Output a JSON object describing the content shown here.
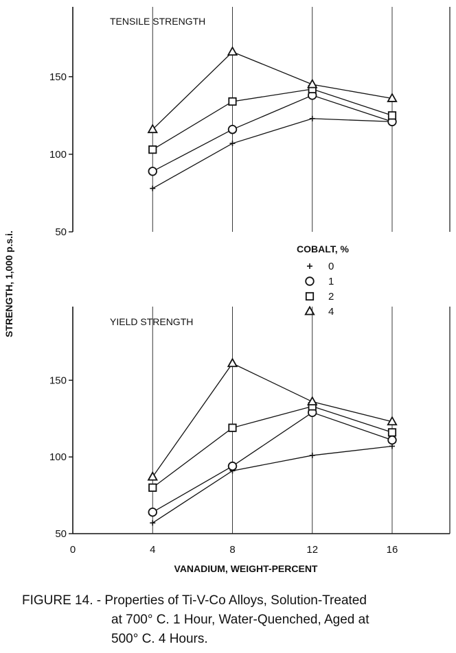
{
  "chart_data": {
    "type": "line",
    "ylabel": "STRENGTH, 1,000 p.s.i.",
    "xlabel": "VANADIUM, WEIGHT-PERCENT",
    "x": [
      4,
      8,
      12,
      16
    ],
    "xticks": [
      0,
      4,
      8,
      12,
      16
    ],
    "xtick_labels": [
      "0",
      "4",
      "8",
      "12",
      "16"
    ],
    "legend": {
      "title": "COBALT, %",
      "entries": [
        {
          "marker": "+",
          "label": "0"
        },
        {
          "marker": "○",
          "label": "1"
        },
        {
          "marker": "□",
          "label": "2"
        },
        {
          "marker": "△",
          "label": "4"
        }
      ]
    },
    "panels": [
      {
        "title": "TENSILE STRENGTH",
        "ylim": [
          50,
          195
        ],
        "yticks": [
          50,
          100,
          150
        ],
        "ytick_labels": [
          "50",
          "100",
          "150"
        ],
        "series": [
          {
            "name": "0",
            "marker": "plus",
            "values": [
              78,
              107,
              123,
              121
            ]
          },
          {
            "name": "1",
            "marker": "circle",
            "values": [
              89,
              116,
              138,
              121
            ]
          },
          {
            "name": "2",
            "marker": "square",
            "values": [
              103,
              134,
              142,
              125
            ]
          },
          {
            "name": "4",
            "marker": "triangle",
            "values": [
              116,
              166,
              145,
              136
            ]
          }
        ]
      },
      {
        "title": "YIELD STRENGTH",
        "ylim": [
          50,
          198
        ],
        "yticks": [
          50,
          100,
          150
        ],
        "ytick_labels": [
          "50",
          "100",
          "150"
        ],
        "series": [
          {
            "name": "0",
            "marker": "plus",
            "values": [
              57,
              91,
              101,
              107
            ]
          },
          {
            "name": "1",
            "marker": "circle",
            "values": [
              64,
              94,
              129,
              111
            ]
          },
          {
            "name": "2",
            "marker": "square",
            "values": [
              80,
              119,
              133,
              116
            ]
          },
          {
            "name": "4",
            "marker": "triangle",
            "values": [
              87,
              161,
              136,
              123
            ]
          }
        ]
      }
    ]
  },
  "caption": {
    "line1": "FIGURE 14. - Properties of Ti-V-Co Alloys, Solution-Treated",
    "line2": "at 700° C. 1 Hour, Water-Quenched, Aged at",
    "line3": "500° C. 4 Hours."
  }
}
